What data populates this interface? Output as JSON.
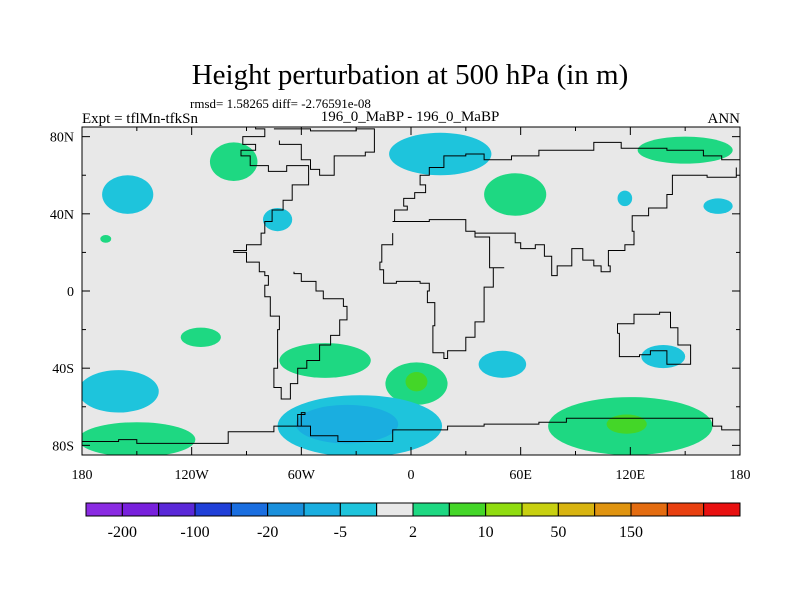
{
  "chart_data": {
    "type": "heatmap",
    "title": "Height perturbation at 500 hPa (in m)",
    "stats_line": "rmsd= 1.58265 diff= -2.76591e-08",
    "left_label": "Expt = tflMn-tfkSn",
    "center_label": "196_0_MaBP - 196_0_MaBP",
    "right_label": "ANN",
    "x_ticks": [
      {
        "value": -180,
        "label": "180"
      },
      {
        "value": -120,
        "label": "120W"
      },
      {
        "value": -60,
        "label": "60W"
      },
      {
        "value": 0,
        "label": "0"
      },
      {
        "value": 60,
        "label": "60E"
      },
      {
        "value": 120,
        "label": "120E"
      },
      {
        "value": 180,
        "label": "180"
      }
    ],
    "y_ticks": [
      {
        "value": 80,
        "label": "80N"
      },
      {
        "value": 40,
        "label": "40N"
      },
      {
        "value": 0,
        "label": "0"
      },
      {
        "value": -40,
        "label": "40S"
      },
      {
        "value": -80,
        "label": "80S"
      }
    ],
    "xlim": [
      -180,
      180
    ],
    "ylim": [
      -85,
      85
    ],
    "colorbar": {
      "colors": [
        "#8a2be2",
        "#7820dc",
        "#5a28d8",
        "#2040d8",
        "#1a6ee0",
        "#1a90dc",
        "#1aaee0",
        "#1ec4dc",
        "#e8e8e8",
        "#1ed882",
        "#44d628",
        "#90dc10",
        "#c8d010",
        "#d8b410",
        "#e09410",
        "#e46c10",
        "#e84010",
        "#e81010"
      ],
      "labels": [
        "-200",
        "-100",
        "-20",
        "-5",
        "2",
        "10",
        "50",
        "150"
      ]
    },
    "anomalies": [
      {
        "name": "na-ridge",
        "lon": -97,
        "lat": 67,
        "rlon": 13,
        "rlat": 10,
        "color": "#1ed882"
      },
      {
        "name": "arctic-low",
        "lon": 16,
        "lat": 71,
        "rlon": 28,
        "rlat": 11,
        "color": "#1ec4dc"
      },
      {
        "name": "eurasia-ridge",
        "lon": 57,
        "lat": 50,
        "rlon": 17,
        "rlat": 11,
        "color": "#1ed882"
      },
      {
        "name": "pacific-low",
        "lon": -155,
        "lat": 50,
        "rlon": 14,
        "rlat": 10,
        "color": "#1ec4dc"
      },
      {
        "name": "asia-low-small",
        "lon": 117,
        "lat": 48,
        "rlon": 4,
        "rlat": 4,
        "color": "#1ec4dc"
      },
      {
        "name": "siberia-ridge",
        "lon": 150,
        "lat": 73,
        "rlon": 26,
        "rlat": 7,
        "color": "#1ed882"
      },
      {
        "name": "kamchatka-low",
        "lon": 168,
        "lat": 44,
        "rlon": 8,
        "rlat": 4,
        "color": "#1ec4dc"
      },
      {
        "name": "atlantic-low-n",
        "lon": -73,
        "lat": 37,
        "rlon": 8,
        "rlat": 6,
        "color": "#1ec4dc"
      },
      {
        "name": "pacific-low-tiny",
        "lon": -167,
        "lat": 27,
        "rlon": 3,
        "rlat": 2,
        "color": "#1ed882"
      },
      {
        "name": "sh-ridge-south-pacific",
        "lon": -115,
        "lat": -24,
        "rlon": 11,
        "rlat": 5,
        "color": "#1ed882"
      },
      {
        "name": "sh-ridge-south-america",
        "lon": -47,
        "lat": -36,
        "rlon": 25,
        "rlat": 9,
        "color": "#1ed882"
      },
      {
        "name": "sh-ridge-south-atlantic",
        "lon": 3,
        "lat": -48,
        "rlon": 17,
        "rlat": 11,
        "color": "#1ed882"
      },
      {
        "name": "sh-low-indian",
        "lon": 50,
        "lat": -38,
        "rlon": 13,
        "rlat": 7,
        "color": "#1ec4dc"
      },
      {
        "name": "sh-low-australia",
        "lon": 138,
        "lat": -34,
        "rlon": 12,
        "rlat": 6,
        "color": "#1ec4dc"
      },
      {
        "name": "sh-low-pacific-w",
        "lon": -160,
        "lat": -52,
        "rlon": 22,
        "rlat": 11,
        "color": "#1ec4dc"
      },
      {
        "name": "sh-ridge-pacific-s",
        "lon": -150,
        "lat": -77,
        "rlon": 32,
        "rlat": 9,
        "color": "#1ed882"
      },
      {
        "name": "sh-low-antarctic",
        "lon": -28,
        "lat": -70,
        "rlon": 45,
        "rlat": 16,
        "color": "#1ec4dc"
      },
      {
        "name": "sh-ridge-indian-s",
        "lon": 120,
        "lat": -70,
        "rlon": 45,
        "rlat": 15,
        "color": "#1ed882"
      }
    ],
    "cores": [
      {
        "name": "sh-core-antarctic",
        "lon": -35,
        "lat": -69,
        "rlon": 28,
        "rlat": 10,
        "color": "#1aaee0"
      },
      {
        "name": "sh-core-atlantic",
        "lon": 3,
        "lat": -47,
        "rlon": 6,
        "rlat": 5,
        "color": "#44d628"
      },
      {
        "name": "sh-core-indian",
        "lon": 118,
        "lat": -69,
        "rlon": 11,
        "rlat": 5,
        "color": "#44d628"
      }
    ],
    "coastlines": [
      [
        [
          -110,
          85
        ],
        [
          -85,
          84
        ],
        [
          -80,
          80
        ],
        [
          -92,
          76
        ],
        [
          -85,
          73
        ],
        [
          -93,
          70
        ],
        [
          -88,
          65
        ],
        [
          -78,
          62
        ],
        [
          -68,
          65
        ],
        [
          -56,
          55
        ],
        [
          -65,
          47
        ],
        [
          -70,
          42
        ],
        [
          -76,
          36
        ],
        [
          -80,
          30
        ],
        [
          -82,
          24
        ],
        [
          -90,
          21
        ],
        [
          -97,
          20
        ],
        [
          -90,
          15
        ],
        [
          -83,
          10
        ],
        [
          -80,
          8
        ],
        [
          -78,
          3
        ],
        [
          -80,
          -3
        ],
        [
          -77,
          -13
        ],
        [
          -72,
          -20
        ],
        [
          -73,
          -30
        ],
        [
          -73,
          -40
        ],
        [
          -75,
          -50
        ],
        [
          -71,
          -56
        ],
        [
          -66,
          -55
        ],
        [
          -66,
          -48
        ],
        [
          -62,
          -40
        ],
        [
          -57,
          -36
        ],
        [
          -50,
          -28
        ],
        [
          -44,
          -23
        ],
        [
          -39,
          -15
        ],
        [
          -35,
          -8
        ],
        [
          -37,
          -4
        ],
        [
          -48,
          0
        ],
        [
          -52,
          5
        ],
        [
          -60,
          9
        ],
        [
          -64,
          10
        ]
      ],
      [
        [
          -75,
          84
        ],
        [
          -55,
          83
        ],
        [
          -30,
          84
        ],
        [
          -20,
          80
        ],
        [
          -20,
          72
        ],
        [
          -25,
          70
        ],
        [
          -42,
          60
        ],
        [
          -50,
          63
        ],
        [
          -55,
          68
        ],
        [
          -60,
          76
        ],
        [
          -72,
          78
        ]
      ],
      [
        [
          -10,
          36
        ],
        [
          -9,
          42
        ],
        [
          -2,
          44
        ],
        [
          -4,
          48
        ],
        [
          2,
          51
        ],
        [
          8,
          55
        ],
        [
          5,
          60
        ],
        [
          10,
          64
        ],
        [
          18,
          70
        ],
        [
          30,
          71
        ],
        [
          40,
          68
        ],
        [
          55,
          70
        ],
        [
          70,
          73
        ],
        [
          80,
          73
        ],
        [
          100,
          77
        ],
        [
          115,
          74
        ],
        [
          140,
          73
        ],
        [
          160,
          70
        ],
        [
          170,
          68
        ],
        [
          180,
          66
        ]
      ],
      [
        [
          -10,
          36
        ],
        [
          -6,
          36
        ],
        [
          10,
          37
        ],
        [
          30,
          31
        ],
        [
          35,
          28
        ],
        [
          43,
          12
        ],
        [
          51,
          12
        ],
        [
          45,
          2
        ],
        [
          40,
          -10
        ],
        [
          40,
          -16
        ],
        [
          35,
          -24
        ],
        [
          30,
          -31
        ],
        [
          20,
          -35
        ],
        [
          18,
          -32
        ],
        [
          12,
          -18
        ],
        [
          13,
          -6
        ],
        [
          9,
          0
        ],
        [
          10,
          4
        ],
        [
          5,
          5
        ],
        [
          -8,
          4
        ],
        [
          -15,
          11
        ],
        [
          -17,
          15
        ],
        [
          -16,
          24
        ],
        [
          -10,
          30
        ]
      ],
      [
        [
          35,
          30
        ],
        [
          48,
          30
        ],
        [
          57,
          25
        ],
        [
          60,
          22
        ],
        [
          68,
          24
        ],
        [
          73,
          18
        ],
        [
          77,
          8
        ],
        [
          80,
          13
        ],
        [
          88,
          22
        ],
        [
          94,
          16
        ],
        [
          100,
          13
        ],
        [
          104,
          10
        ],
        [
          109,
          13
        ],
        [
          108,
          21
        ],
        [
          117,
          24
        ],
        [
          122,
          31
        ],
        [
          121,
          39
        ],
        [
          130,
          43
        ],
        [
          140,
          50
        ],
        [
          143,
          60
        ],
        [
          155,
          60
        ],
        [
          162,
          59
        ],
        [
          178,
          64
        ]
      ],
      [
        [
          113,
          -22
        ],
        [
          114,
          -34
        ],
        [
          125,
          -33
        ],
        [
          131,
          -31
        ],
        [
          140,
          -38
        ],
        [
          148,
          -38
        ],
        [
          153,
          -28
        ],
        [
          146,
          -19
        ],
        [
          142,
          -11
        ],
        [
          136,
          -12
        ],
        [
          130,
          -12
        ],
        [
          122,
          -17
        ],
        [
          113,
          -22
        ]
      ],
      [
        [
          -180,
          -78
        ],
        [
          -160,
          -77
        ],
        [
          -150,
          -79
        ],
        [
          -100,
          -73
        ],
        [
          -75,
          -70
        ],
        [
          -60,
          -63
        ],
        [
          -58,
          -64
        ],
        [
          -62,
          -70
        ],
        [
          -55,
          -75
        ],
        [
          -40,
          -78
        ],
        [
          -10,
          -72
        ],
        [
          20,
          -70
        ],
        [
          40,
          -69
        ],
        [
          70,
          -68
        ],
        [
          85,
          -66
        ],
        [
          120,
          -66
        ],
        [
          140,
          -66
        ],
        [
          165,
          -70
        ],
        [
          170,
          -72
        ],
        [
          180,
          -78
        ]
      ]
    ]
  }
}
